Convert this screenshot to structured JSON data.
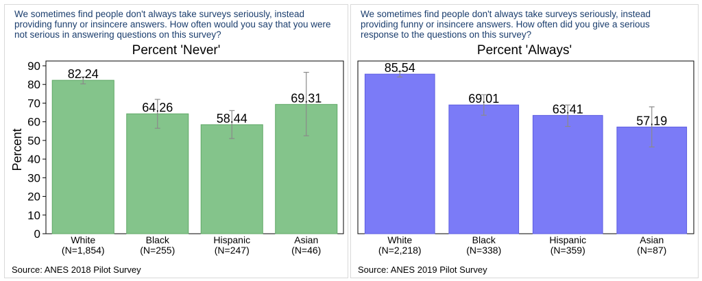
{
  "left": {
    "question": "We sometimes find people don't always take surveys seriously, instead providing funny or insincere answers. How often would you say that you were not serious in answering questions on this survey?",
    "source": "Source: ANES 2018 Pilot Survey",
    "chart_data": {
      "type": "bar",
      "title": "Percent 'Never'",
      "ylabel": "Percent",
      "ylim": [
        0,
        90
      ],
      "yticks": [
        0,
        10,
        20,
        30,
        40,
        50,
        60,
        70,
        80,
        90
      ],
      "grid": false,
      "categories": [
        "White",
        "Black",
        "Hispanic",
        "Asian"
      ],
      "n_labels": [
        "(N=1,854)",
        "(N=255)",
        "(N=247)",
        "(N=46)"
      ],
      "values": [
        82.24,
        64.26,
        58.44,
        69.31
      ],
      "value_labels": [
        "82.24",
        "64.26",
        "58.44",
        "69.31"
      ],
      "error_low": [
        80.3,
        56.5,
        51.0,
        52.5
      ],
      "error_high": [
        84.0,
        72.0,
        66.0,
        86.5
      ],
      "bar_color": "#84c48b",
      "bar_stroke": "#5fa866"
    }
  },
  "right": {
    "question": "We sometimes find people don't always take surveys seriously, instead providing funny or insincere answers. How often did you give a serious response to the questions on this survey?",
    "source": "Source: ANES 2019 Pilot Survey",
    "chart_data": {
      "type": "bar",
      "title": "Percent 'Always'",
      "ylabel": "",
      "ylim": [
        0,
        90
      ],
      "grid": false,
      "categories": [
        "White",
        "Black",
        "Hispanic",
        "Asian"
      ],
      "n_labels": [
        "(N=2,218)",
        "(N=338)",
        "(N=359)",
        "(N=87)"
      ],
      "values": [
        85.54,
        69.01,
        63.41,
        57.19
      ],
      "value_labels": [
        "85.54",
        "69.01",
        "63.41",
        "57.19"
      ],
      "error_low": [
        84.0,
        63.5,
        57.5,
        46.5
      ],
      "error_high": [
        87.0,
        74.5,
        69.0,
        68.0
      ],
      "bar_color": "#7b7bf7",
      "bar_stroke": "#5c5ce0"
    }
  }
}
